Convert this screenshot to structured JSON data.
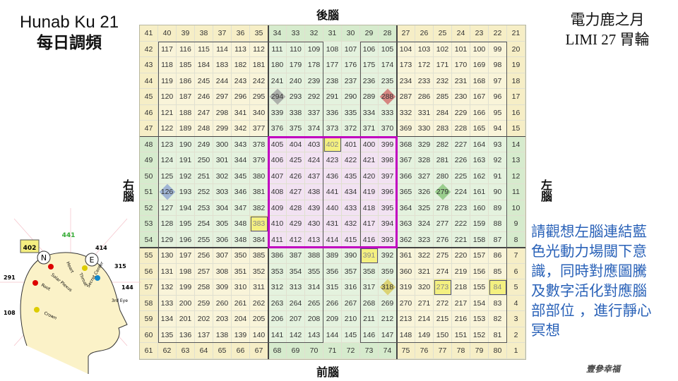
{
  "title": {
    "line1": "Hunab Ku 21",
    "line2": "每日調頻"
  },
  "top_right": {
    "line1": "電力鹿之月",
    "line2": "LIMI 27 胃輪"
  },
  "directions": {
    "top": "後腦",
    "bottom": "前腦",
    "left": "右腦",
    "right": "左腦"
  },
  "note_lines": [
    "請觀想左腦連結藍",
    "色光動力場閾下意",
    "識，同時對應圖騰",
    "及數字活化對應腦",
    "部部位 ，進行靜心",
    "冥想"
  ],
  "watermark": "壹參幸福",
  "colors": {
    "yellow_zone": "#f6eec6",
    "green_zone": "#d6ebcd",
    "pink_zone": "#ecd3ec",
    "magenta_border": "#c000c0",
    "note_text": "#2a62b8"
  },
  "grid": [
    [
      41,
      40,
      39,
      38,
      37,
      36,
      35,
      34,
      33,
      32,
      31,
      30,
      29,
      28,
      27,
      26,
      25,
      24,
      23,
      22,
      21
    ],
    [
      42,
      117,
      116,
      115,
      114,
      113,
      112,
      111,
      110,
      109,
      108,
      107,
      106,
      105,
      104,
      103,
      102,
      101,
      100,
      99,
      20
    ],
    [
      43,
      118,
      185,
      184,
      183,
      182,
      181,
      180,
      179,
      178,
      177,
      176,
      175,
      174,
      173,
      172,
      171,
      170,
      169,
      98,
      19
    ],
    [
      44,
      119,
      186,
      245,
      244,
      243,
      242,
      241,
      240,
      239,
      238,
      237,
      236,
      235,
      234,
      233,
      232,
      231,
      168,
      97,
      18
    ],
    [
      45,
      120,
      187,
      246,
      297,
      296,
      295,
      294,
      293,
      292,
      291,
      290,
      289,
      288,
      287,
      286,
      285,
      230,
      167,
      96,
      17
    ],
    [
      46,
      121,
      188,
      247,
      298,
      341,
      340,
      339,
      338,
      337,
      336,
      335,
      334,
      333,
      332,
      331,
      284,
      229,
      166,
      95,
      16
    ],
    [
      47,
      122,
      189,
      248,
      299,
      342,
      377,
      376,
      375,
      374,
      373,
      372,
      371,
      370,
      369,
      330,
      283,
      228,
      165,
      94,
      15
    ],
    [
      48,
      123,
      190,
      249,
      300,
      343,
      378,
      405,
      404,
      403,
      402,
      401,
      400,
      399,
      368,
      329,
      282,
      227,
      164,
      93,
      14
    ],
    [
      49,
      124,
      191,
      250,
      301,
      344,
      379,
      406,
      425,
      424,
      423,
      422,
      421,
      398,
      367,
      328,
      281,
      226,
      163,
      92,
      13
    ],
    [
      50,
      125,
      192,
      251,
      302,
      345,
      380,
      407,
      426,
      437,
      436,
      435,
      420,
      397,
      366,
      327,
      280,
      225,
      162,
      91,
      12
    ],
    [
      51,
      126,
      193,
      252,
      303,
      346,
      381,
      408,
      427,
      438,
      441,
      434,
      419,
      396,
      365,
      326,
      279,
      224,
      161,
      90,
      11
    ],
    [
      52,
      127,
      194,
      253,
      304,
      347,
      382,
      409,
      428,
      439,
      440,
      433,
      418,
      395,
      364,
      325,
      278,
      223,
      160,
      89,
      10
    ],
    [
      53,
      128,
      195,
      254,
      305,
      348,
      383,
      410,
      429,
      430,
      431,
      432,
      417,
      394,
      363,
      324,
      277,
      222,
      159,
      88,
      9
    ],
    [
      54,
      129,
      196,
      255,
      306,
      348,
      384,
      411,
      412,
      413,
      414,
      415,
      416,
      393,
      362,
      323,
      276,
      221,
      158,
      87,
      8
    ],
    [
      55,
      130,
      197,
      256,
      307,
      350,
      385,
      386,
      387,
      388,
      389,
      390,
      391,
      392,
      361,
      322,
      275,
      220,
      157,
      86,
      7
    ],
    [
      56,
      131,
      198,
      257,
      308,
      351,
      352,
      353,
      354,
      355,
      356,
      357,
      358,
      359,
      360,
      321,
      274,
      219,
      156,
      85,
      6
    ],
    [
      57,
      132,
      199,
      258,
      309,
      310,
      311,
      312,
      313,
      314,
      315,
      316,
      317,
      318,
      319,
      320,
      273,
      218,
      155,
      84,
      5
    ],
    [
      58,
      133,
      200,
      259,
      260,
      261,
      262,
      263,
      264,
      265,
      266,
      267,
      268,
      269,
      270,
      271,
      272,
      217,
      154,
      83,
      4
    ],
    [
      59,
      134,
      201,
      202,
      203,
      204,
      205,
      206,
      207,
      208,
      209,
      210,
      211,
      212,
      213,
      214,
      215,
      216,
      153,
      82,
      3
    ],
    [
      60,
      135,
      136,
      137,
      138,
      139,
      140,
      141,
      142,
      143,
      144,
      145,
      146,
      147,
      148,
      149,
      150,
      151,
      152,
      81,
      2
    ],
    [
      61,
      62,
      63,
      64,
      65,
      66,
      67,
      68,
      69,
      70,
      71,
      72,
      73,
      74,
      75,
      76,
      77,
      78,
      79,
      80,
      1
    ]
  ],
  "highlighted_cells": [
    402,
    383,
    391,
    273,
    84
  ],
  "diamond_markers": [
    {
      "value": 294,
      "color": "#9a9a9a"
    },
    {
      "value": 288,
      "color": "#d06060"
    },
    {
      "value": 126,
      "color": "#8aa0d0"
    },
    {
      "value": 279,
      "color": "#80c070"
    },
    {
      "value": 318,
      "color": "#d8c850"
    }
  ],
  "head_diagram": {
    "kin_top": "441",
    "kin_box": "402",
    "kin_e": "414",
    "kin_315": "315",
    "kin_291": "291",
    "kin_144": "144",
    "kin_108": "108",
    "n": "N",
    "e": "E",
    "labels": {
      "solar": "Solar Plexus",
      "heart": "Heart",
      "throat": "Throat",
      "secret": "Secret Center",
      "root": "Root",
      "crown": "Crown",
      "third_eye": "3rd Eye"
    }
  }
}
